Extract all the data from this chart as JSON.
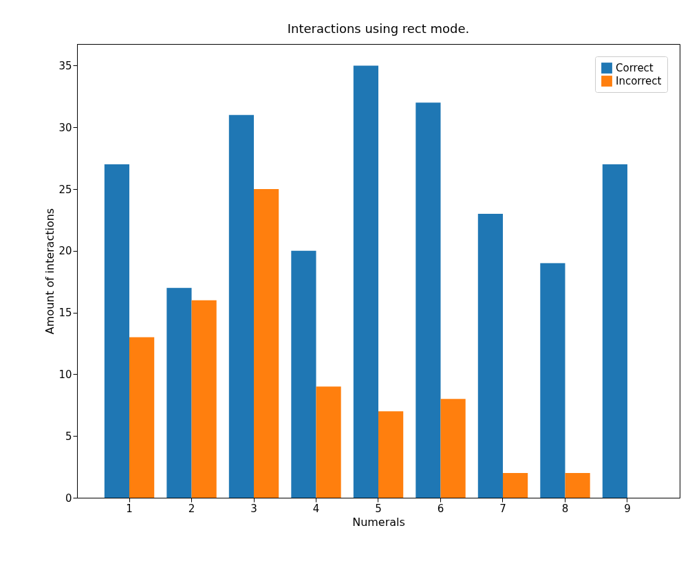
{
  "chart_data": {
    "type": "bar",
    "title": "Interactions using rect mode.",
    "xlabel": "Numerals",
    "ylabel": "Amount of interactions",
    "categories": [
      "1",
      "2",
      "3",
      "4",
      "5",
      "6",
      "7",
      "8",
      "9"
    ],
    "series": [
      {
        "name": "Correct",
        "color": "#1f77b4",
        "values": [
          27,
          17,
          31,
          20,
          35,
          32,
          23,
          19,
          27
        ]
      },
      {
        "name": "Incorrect",
        "color": "#ff7f0e",
        "values": [
          13,
          16,
          25,
          9,
          7,
          8,
          2,
          2,
          0
        ]
      }
    ],
    "ylim": [
      0,
      36.75
    ],
    "yticks": [
      0,
      5,
      10,
      15,
      20,
      25,
      30,
      35
    ],
    "grid": false,
    "legend": "top right"
  }
}
